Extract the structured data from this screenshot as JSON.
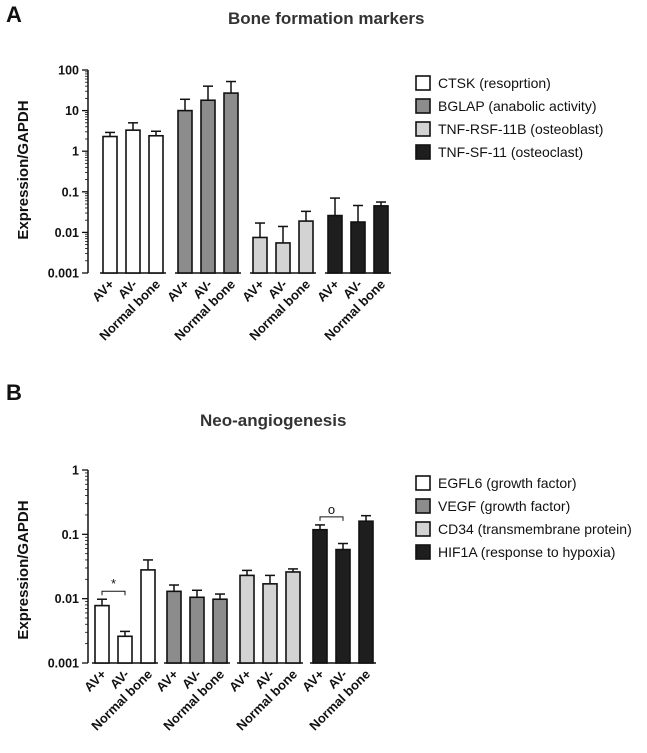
{
  "chart_data": [
    {
      "panel": "A",
      "type": "bar",
      "title": "Bone formation markers",
      "ylabel": "Expression/GAPDH",
      "yscale": "log",
      "ylim": [
        0.001,
        100
      ],
      "yticks": [
        "0.001",
        "0.01",
        "0.1",
        "1",
        "10",
        "100"
      ],
      "categories": [
        "AV+",
        "AV-",
        "Normal bone"
      ],
      "legend_position": "right",
      "series": [
        {
          "name": "CTSK (resoprtion)",
          "color": "#ffffff",
          "values": [
            2.3,
            3.3,
            2.4
          ],
          "errors": [
            2.9,
            5.0,
            3.1
          ]
        },
        {
          "name": "BGLAP (anabolic activity)",
          "color": "#8c8c8c",
          "values": [
            10,
            18,
            27
          ],
          "errors": [
            19,
            40,
            52
          ]
        },
        {
          "name": "TNF-RSF-11B (osteoblast)",
          "color": "#d3d3d3",
          "values": [
            0.0075,
            0.0055,
            0.019
          ],
          "errors": [
            0.017,
            0.014,
            0.033
          ]
        },
        {
          "name": "TNF-SF-11 (osteoclast)",
          "color": "#1e1e1e",
          "values": [
            0.026,
            0.018,
            0.045
          ],
          "errors": [
            0.07,
            0.046,
            0.056
          ]
        }
      ],
      "annotations": []
    },
    {
      "panel": "B",
      "type": "bar",
      "title": "Neo-angiogenesis",
      "ylabel": "Expression/GAPDH",
      "yscale": "log",
      "ylim": [
        0.001,
        1
      ],
      "yticks": [
        "0.001",
        "0.01",
        "0.1",
        "1"
      ],
      "categories": [
        "AV+",
        "AV-",
        "Normal bone"
      ],
      "legend_position": "right",
      "series": [
        {
          "name": "EGFL6 (growth factor)",
          "color": "#ffffff",
          "values": [
            0.0078,
            0.0026,
            0.028
          ],
          "errors": [
            0.0098,
            0.0031,
            0.04
          ]
        },
        {
          "name": "VEGF (growth factor)",
          "color": "#8c8c8c",
          "values": [
            0.013,
            0.0105,
            0.0098
          ],
          "errors": [
            0.0163,
            0.0135,
            0.0118
          ]
        },
        {
          "name": "CD34 (transmembrane protein)",
          "color": "#d3d3d3",
          "values": [
            0.023,
            0.017,
            0.026
          ],
          "errors": [
            0.0275,
            0.023,
            0.029
          ]
        },
        {
          "name": "HIF1A (response to hypoxia)",
          "color": "#1e1e1e",
          "values": [
            0.118,
            0.058,
            0.16
          ],
          "errors": [
            0.14,
            0.072,
            0.195
          ]
        }
      ],
      "annotations": [
        {
          "text": "*",
          "series": 0,
          "bars": [
            0,
            1
          ]
        },
        {
          "text": "o",
          "series": 3,
          "bars": [
            0,
            1
          ]
        }
      ]
    }
  ]
}
